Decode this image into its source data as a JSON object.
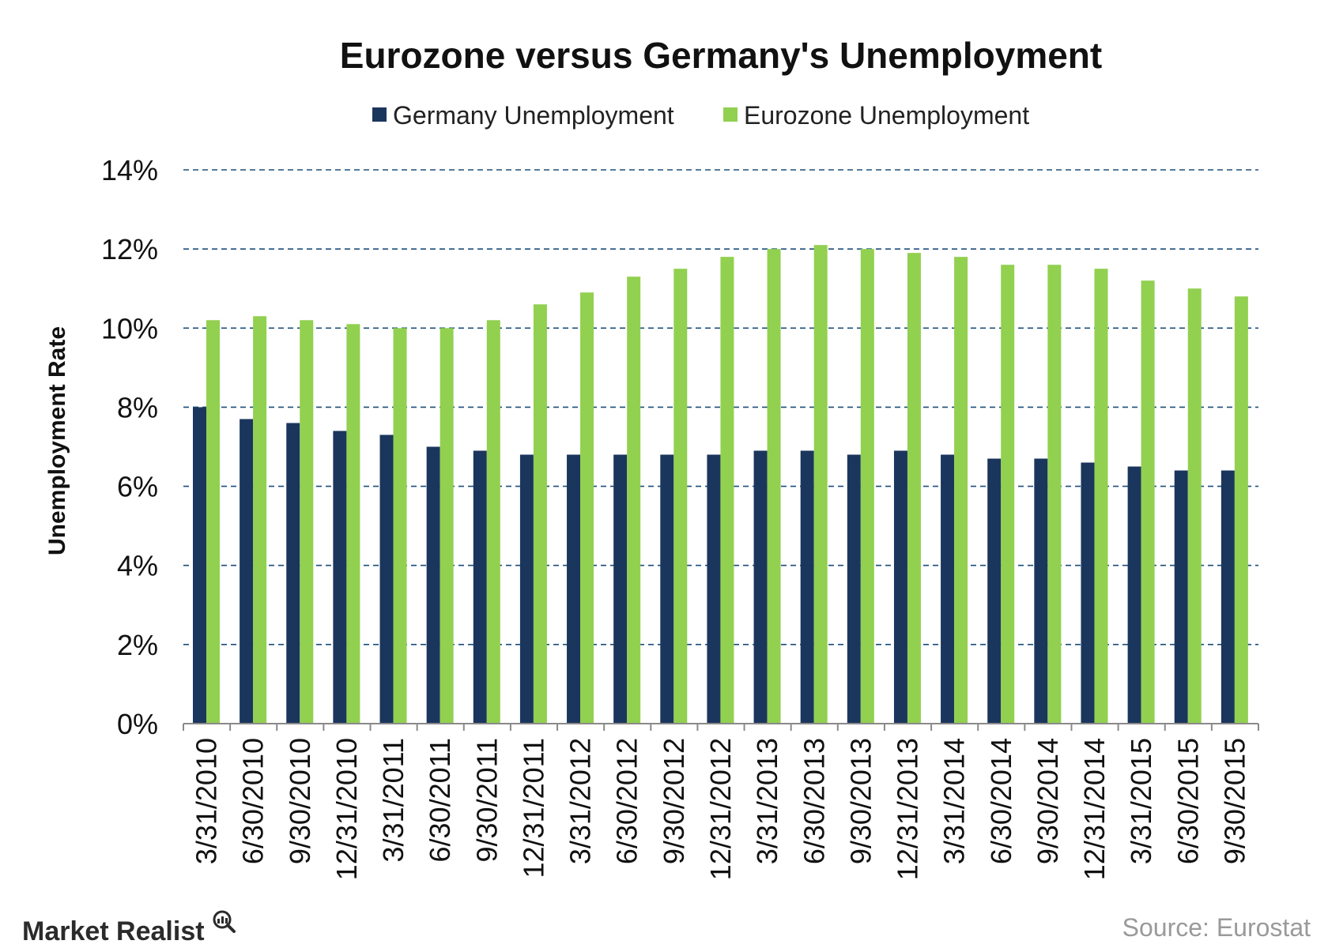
{
  "chart_data": {
    "type": "bar",
    "title": "Eurozone versus Germany's Unemployment",
    "xlabel": "",
    "ylabel": "Unemployment Rate",
    "ylim": [
      0,
      14
    ],
    "yticks": [
      "0%",
      "2%",
      "4%",
      "6%",
      "8%",
      "10%",
      "12%",
      "14%"
    ],
    "grid": true,
    "legend_position": "top-center",
    "categories": [
      "3/31/2010",
      "6/30/2010",
      "9/30/2010",
      "12/31/2010",
      "3/31/2011",
      "6/30/2011",
      "9/30/2011",
      "12/31/2011",
      "3/31/2012",
      "6/30/2012",
      "9/30/2012",
      "12/31/2012",
      "3/31/2013",
      "6/30/2013",
      "9/30/2013",
      "12/31/2013",
      "3/31/2014",
      "6/30/2014",
      "9/30/2014",
      "12/31/2014",
      "3/31/2015",
      "6/30/2015",
      "9/30/2015"
    ],
    "series": [
      {
        "name": "Germany Unemployment",
        "color": "#1b365d",
        "values": [
          8.0,
          7.7,
          7.6,
          7.4,
          7.3,
          7.0,
          6.9,
          6.8,
          6.8,
          6.8,
          6.8,
          6.8,
          6.9,
          6.9,
          6.8,
          6.9,
          6.8,
          6.7,
          6.7,
          6.6,
          6.5,
          6.4,
          6.4
        ]
      },
      {
        "name": "Eurozone Unemployment",
        "color": "#92d050",
        "values": [
          10.2,
          10.3,
          10.2,
          10.1,
          10.0,
          10.0,
          10.2,
          10.6,
          10.9,
          11.3,
          11.5,
          11.8,
          12.0,
          12.1,
          12.0,
          11.9,
          11.8,
          11.6,
          11.6,
          11.5,
          11.2,
          11.0,
          10.8
        ]
      }
    ]
  },
  "footer": {
    "brand": "Market Realist",
    "source": "Source: Eurostat"
  },
  "colors": {
    "gridline": "#1b4e7a",
    "axis": "#8a8a8a"
  }
}
